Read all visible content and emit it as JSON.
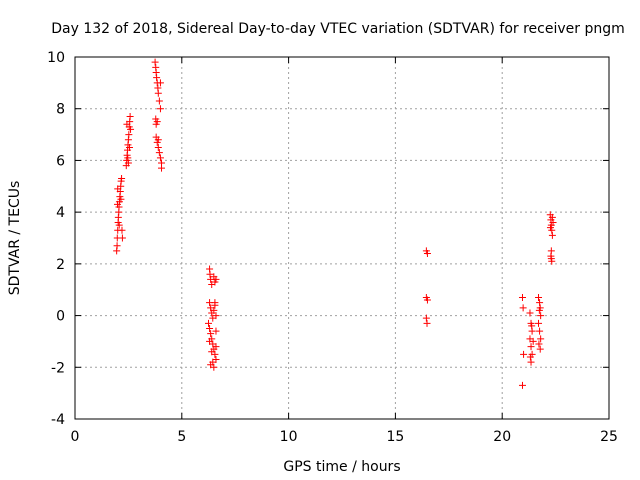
{
  "chart_data": {
    "type": "scatter",
    "title": "Day 132 of 2018, Sidereal Day-to-day VTEC variation (SDTVAR) for receiver pngm",
    "xlabel": "GPS time / hours",
    "ylabel": "SDTVAR / TECUs",
    "xlim": [
      0,
      25
    ],
    "ylim": [
      -4,
      10
    ],
    "xticks": [
      0,
      5,
      10,
      15,
      20,
      25
    ],
    "yticks": [
      -4,
      -2,
      0,
      2,
      4,
      6,
      8,
      10
    ],
    "grid": true,
    "marker": "+",
    "color": "#ff0000",
    "series": [
      {
        "name": "SDTVAR",
        "points": [
          [
            1.95,
            2.5
          ],
          [
            1.97,
            2.7
          ],
          [
            1.98,
            3.0
          ],
          [
            2.0,
            3.3
          ],
          [
            2.02,
            3.6
          ],
          [
            2.03,
            3.8
          ],
          [
            2.05,
            4.0
          ],
          [
            2.06,
            4.2
          ],
          [
            2.08,
            4.4
          ],
          [
            2.1,
            4.6
          ],
          [
            2.12,
            4.8
          ],
          [
            2.14,
            5.0
          ],
          [
            2.16,
            5.2
          ],
          [
            2.18,
            5.3
          ],
          [
            2.2,
            3.3
          ],
          [
            2.22,
            3.0
          ],
          [
            2.15,
            4.5
          ],
          [
            2.0,
            4.9
          ],
          [
            1.99,
            4.3
          ],
          [
            2.07,
            3.5
          ],
          [
            2.4,
            5.8
          ],
          [
            2.42,
            6.0
          ],
          [
            2.44,
            6.2
          ],
          [
            2.46,
            6.4
          ],
          [
            2.48,
            6.6
          ],
          [
            2.5,
            6.8
          ],
          [
            2.52,
            7.0
          ],
          [
            2.54,
            7.3
          ],
          [
            2.56,
            7.5
          ],
          [
            2.58,
            7.7
          ],
          [
            2.47,
            6.1
          ],
          [
            2.55,
            6.5
          ],
          [
            2.43,
            7.4
          ],
          [
            2.6,
            7.2
          ],
          [
            2.5,
            5.9
          ],
          [
            3.75,
            9.8
          ],
          [
            3.78,
            9.6
          ],
          [
            3.8,
            9.4
          ],
          [
            3.82,
            9.2
          ],
          [
            3.85,
            9.0
          ],
          [
            3.88,
            8.8
          ],
          [
            3.9,
            8.6
          ],
          [
            3.95,
            8.3
          ],
          [
            4.0,
            8.0
          ],
          [
            3.78,
            7.6
          ],
          [
            3.8,
            7.4
          ],
          [
            3.85,
            7.5
          ],
          [
            3.8,
            6.9
          ],
          [
            3.85,
            6.7
          ],
          [
            3.9,
            6.5
          ],
          [
            3.95,
            6.3
          ],
          [
            4.0,
            6.1
          ],
          [
            4.05,
            5.9
          ],
          [
            4.05,
            5.7
          ],
          [
            3.9,
            6.8
          ],
          [
            4.0,
            9.0
          ],
          [
            6.3,
            1.8
          ],
          [
            6.32,
            1.6
          ],
          [
            6.35,
            1.4
          ],
          [
            6.4,
            1.2
          ],
          [
            6.5,
            1.5
          ],
          [
            6.55,
            1.3
          ],
          [
            6.6,
            1.4
          ],
          [
            6.3,
            0.5
          ],
          [
            6.35,
            0.3
          ],
          [
            6.4,
            0.1
          ],
          [
            6.45,
            -0.1
          ],
          [
            6.5,
            0.2
          ],
          [
            6.55,
            0.4
          ],
          [
            6.6,
            0.0
          ],
          [
            6.3,
            -0.5
          ],
          [
            6.35,
            -0.7
          ],
          [
            6.4,
            -0.9
          ],
          [
            6.45,
            -1.1
          ],
          [
            6.5,
            -1.3
          ],
          [
            6.55,
            -1.5
          ],
          [
            6.6,
            -1.7
          ],
          [
            6.35,
            -1.9
          ],
          [
            6.5,
            -2.0
          ],
          [
            6.4,
            -1.4
          ],
          [
            6.6,
            -0.6
          ],
          [
            6.25,
            -0.3
          ],
          [
            6.45,
            -1.8
          ],
          [
            6.55,
            0.5
          ],
          [
            6.3,
            -1.0
          ],
          [
            6.6,
            -1.2
          ],
          [
            16.45,
            2.5
          ],
          [
            16.5,
            2.4
          ],
          [
            16.45,
            0.7
          ],
          [
            16.5,
            0.6
          ],
          [
            16.45,
            -0.1
          ],
          [
            16.48,
            -0.3
          ],
          [
            20.95,
            0.7
          ],
          [
            20.98,
            0.3
          ],
          [
            21.0,
            -1.5
          ],
          [
            20.95,
            -2.7
          ],
          [
            21.3,
            0.1
          ],
          [
            21.35,
            -0.3
          ],
          [
            21.4,
            -0.6
          ],
          [
            21.3,
            -0.9
          ],
          [
            21.35,
            -1.2
          ],
          [
            21.4,
            -1.5
          ],
          [
            21.35,
            -1.8
          ],
          [
            21.45,
            -1.0
          ],
          [
            21.38,
            -0.4
          ],
          [
            21.32,
            -1.6
          ],
          [
            21.7,
            0.7
          ],
          [
            21.75,
            0.5
          ],
          [
            21.78,
            0.3
          ],
          [
            21.8,
            0.0
          ],
          [
            21.7,
            -0.3
          ],
          [
            21.75,
            -0.6
          ],
          [
            21.8,
            -0.9
          ],
          [
            21.72,
            -1.1
          ],
          [
            21.78,
            -1.3
          ],
          [
            21.74,
            0.2
          ],
          [
            22.25,
            3.9
          ],
          [
            22.28,
            3.7
          ],
          [
            22.3,
            3.5
          ],
          [
            22.32,
            3.3
          ],
          [
            22.35,
            3.1
          ],
          [
            22.3,
            2.5
          ],
          [
            22.28,
            2.3
          ],
          [
            22.32,
            2.1
          ],
          [
            22.35,
            3.8
          ],
          [
            22.38,
            3.6
          ],
          [
            22.26,
            3.4
          ],
          [
            22.3,
            2.2
          ]
        ]
      }
    ]
  }
}
